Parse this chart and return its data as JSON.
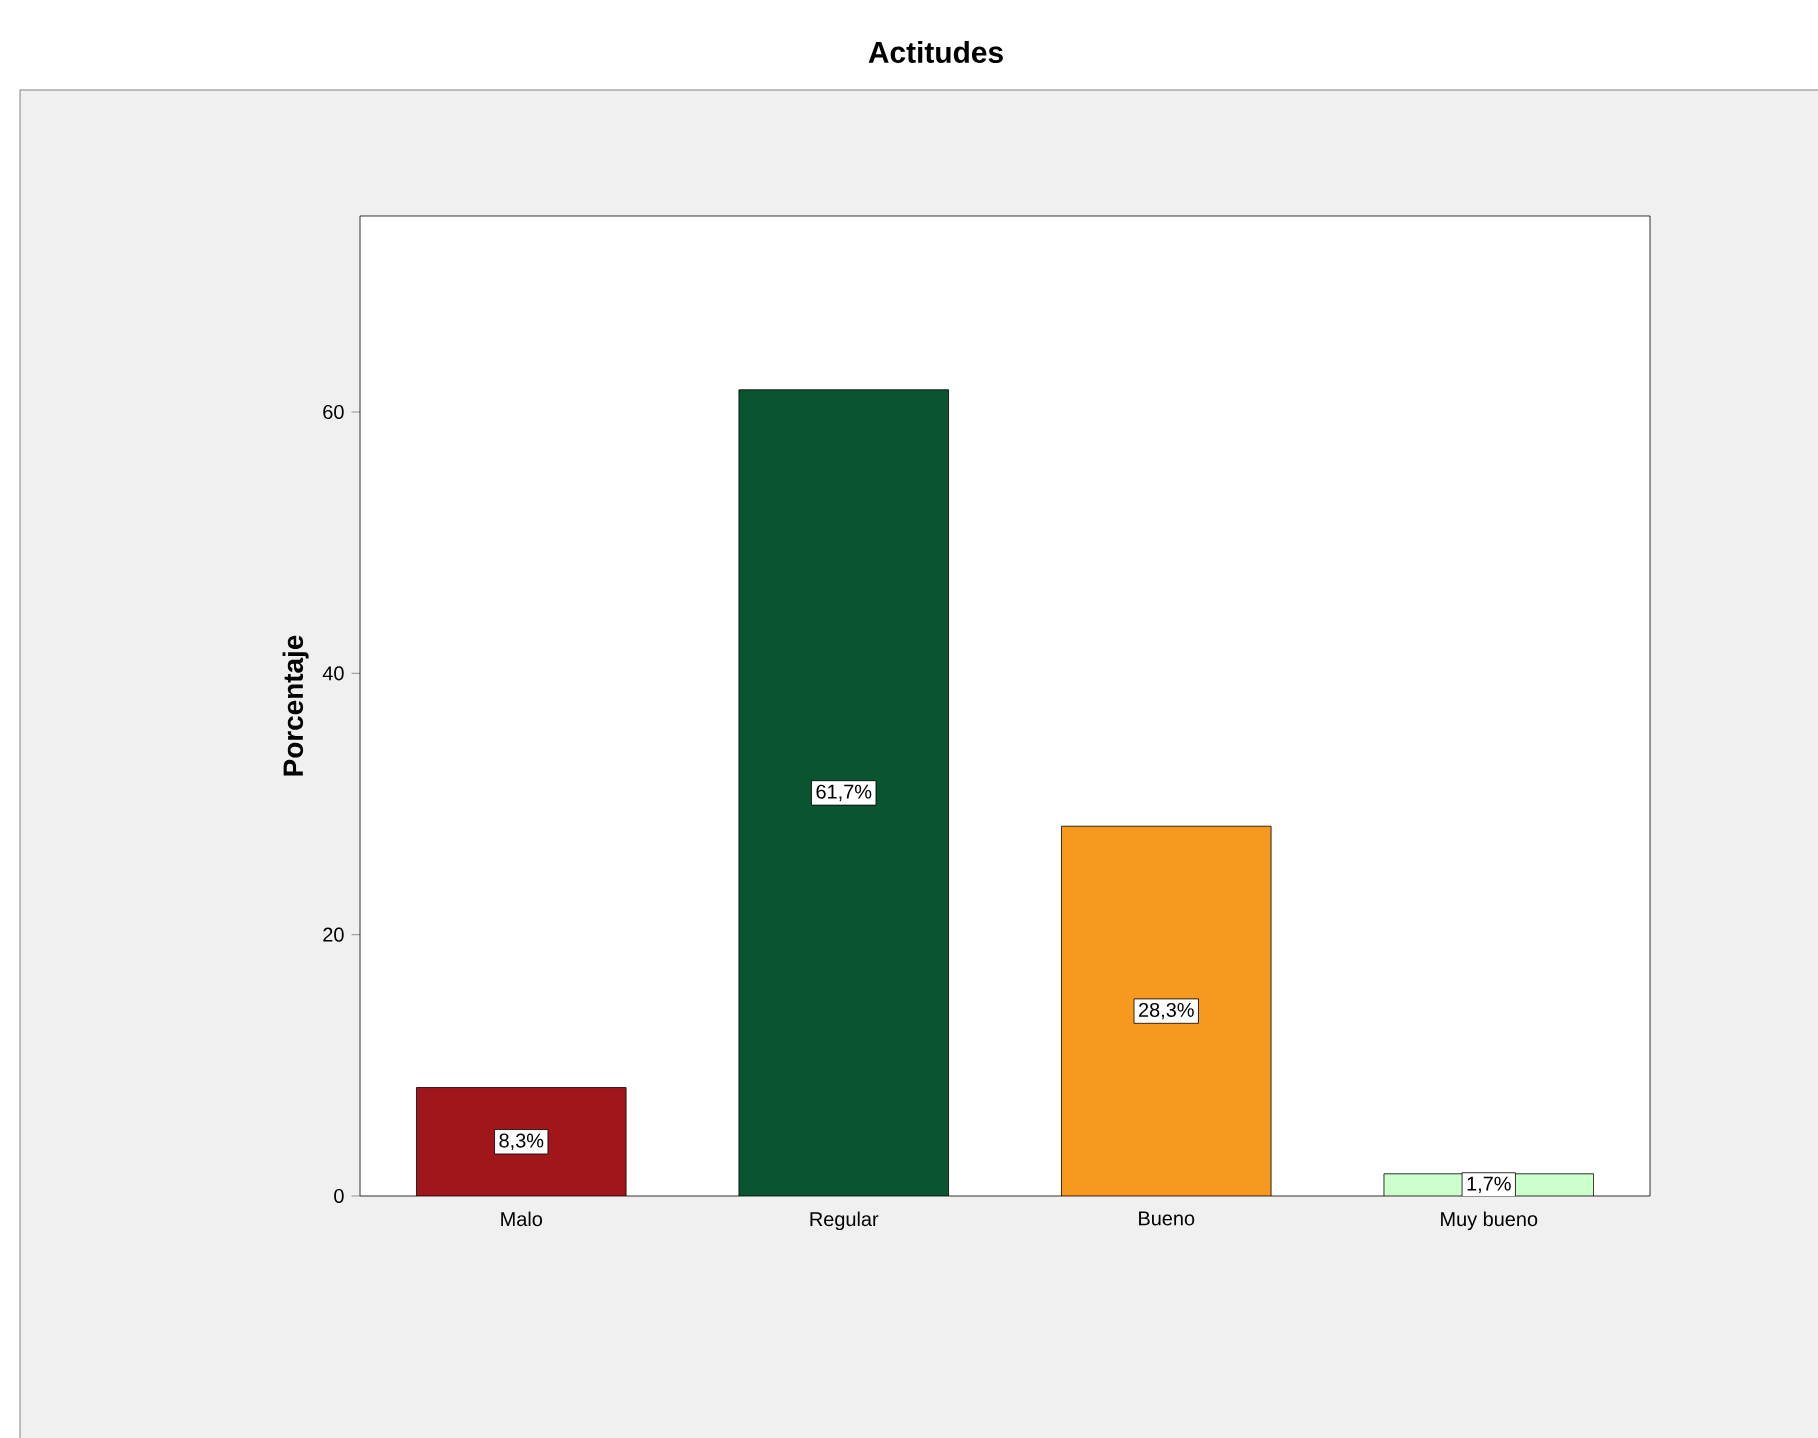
{
  "chart_data": {
    "type": "bar",
    "title": "Actitudes",
    "ylabel": "Porcentaje",
    "categories": [
      "Malo",
      "Regular",
      "Bueno",
      "Muy bueno"
    ],
    "values": [
      8.3,
      61.7,
      28.3,
      1.7
    ],
    "colors": [
      "#a0161b",
      "#0b5430",
      "#f7991f",
      "#ccffcc"
    ],
    "value_labels": [
      "8,3%",
      "61,7%",
      "28,3%",
      "1,7%"
    ],
    "ylim": [
      0,
      75
    ],
    "yticks": [
      0,
      20,
      40,
      60
    ],
    "grid": false
  }
}
